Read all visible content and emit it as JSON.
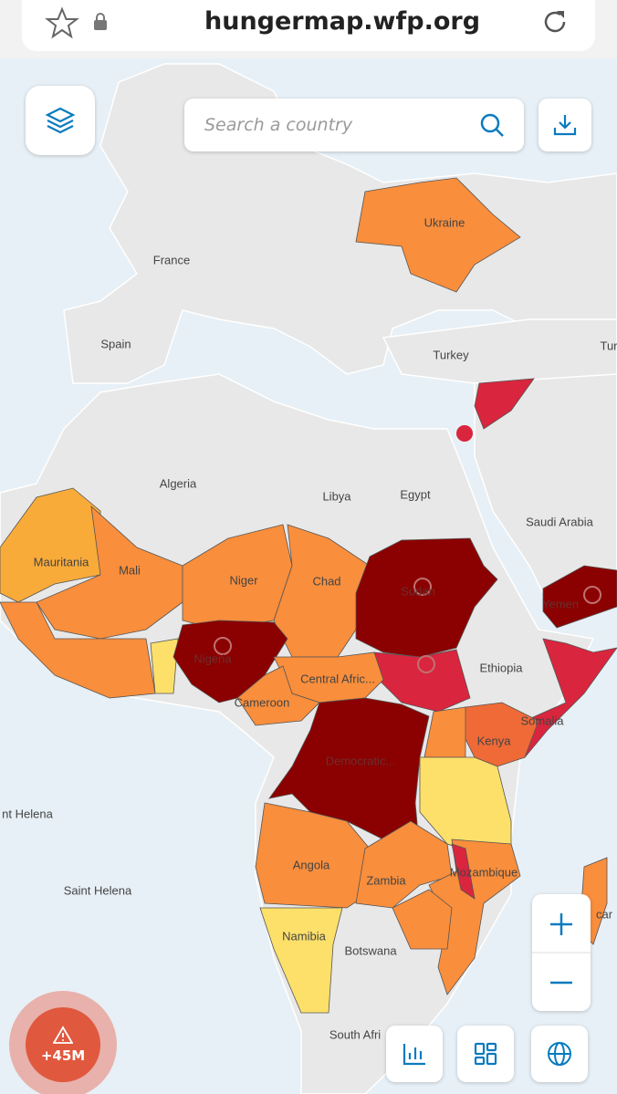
{
  "browser": {
    "url": "hungermap.wfp.org"
  },
  "search": {
    "placeholder": "Search a country"
  },
  "map": {
    "labels": [
      "France",
      "Spain",
      "Ukraine",
      "Turkey",
      "Tur",
      "Algeria",
      "Libya",
      "Egypt",
      "Saudi Arabia",
      "Mauritania",
      "Mali",
      "Niger",
      "Chad",
      "Sudan",
      "Yemen",
      "Nigeria",
      "Ethiopia",
      "Central Afric...",
      "Cameroon",
      "Somalia",
      "Kenya",
      "Democratic...",
      "nt Helena",
      "Saint Helena",
      "Angola",
      "Zambia",
      "Mozambique",
      "Namibia",
      "Botswana",
      "South Afri",
      "car"
    ]
  },
  "alert": {
    "count": "+45M"
  }
}
